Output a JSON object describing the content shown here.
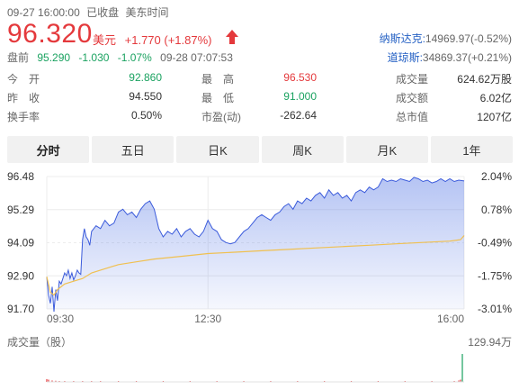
{
  "header": {
    "datetime": "09-27 16:00:00",
    "status": "已收盘",
    "timezone": "美东时间",
    "price": "96.320",
    "currency": "美元",
    "change": "+1.770",
    "change_pct": "(+1.87%)",
    "arrow_icon": "up-arrow-icon",
    "premarket_label": "盘前",
    "premarket_price": "95.290",
    "premarket_change": "-1.030",
    "premarket_pct": "-1.07%",
    "premarket_time": "09-28 07:07:53"
  },
  "indices": [
    {
      "name": "纳斯达克:",
      "value": "14969.97(-0.52%)"
    },
    {
      "name": "道琼斯:",
      "value": "34869.37(+0.21%)"
    }
  ],
  "stats": [
    [
      {
        "label": "今　开",
        "value": "92.860",
        "color": "green"
      },
      {
        "label": "最　高",
        "value": "96.530",
        "color": "red"
      },
      {
        "label": "成交量",
        "value": "624.62万股",
        "color": "dark"
      }
    ],
    [
      {
        "label": "昨　收",
        "value": "94.550",
        "color": "dark"
      },
      {
        "label": "最　低",
        "value": "91.000",
        "color": "green"
      },
      {
        "label": "成交额",
        "value": "6.02亿",
        "color": "dark"
      }
    ],
    [
      {
        "label": "换手率",
        "value": "0.50%",
        "color": "dark"
      },
      {
        "label": "市盈(动)",
        "value": "-262.64",
        "color": "dark"
      },
      {
        "label": "总市值",
        "value": "1207亿",
        "color": "dark"
      }
    ]
  ],
  "tabs": [
    "分时",
    "五日",
    "日K",
    "周K",
    "月K",
    "1年"
  ],
  "active_tab": 0,
  "chart_data": {
    "type": "line",
    "series": [],
    "y_ticks": [
      "96.48",
      "95.29",
      "94.09",
      "92.90",
      "91.70"
    ],
    "y_pct_ticks": [
      "2.04%",
      "0.78%",
      "-0.49%",
      "-1.75%",
      "-3.01%"
    ],
    "x_ticks": [
      "09:30",
      "12:30",
      "16:00"
    ],
    "ylim": [
      91.7,
      96.48
    ],
    "prev_close": 94.55,
    "price_line": [
      [
        0,
        92.86
      ],
      [
        2,
        92.2
      ],
      [
        4,
        91.9
      ],
      [
        6,
        92.5
      ],
      [
        8,
        91.6
      ],
      [
        10,
        92.4
      ],
      [
        12,
        92.0
      ],
      [
        14,
        92.7
      ],
      [
        16,
        92.6
      ],
      [
        18,
        92.8
      ],
      [
        20,
        93.0
      ],
      [
        22,
        92.9
      ],
      [
        24,
        93.1
      ],
      [
        26,
        92.8
      ],
      [
        28,
        93.0
      ],
      [
        30,
        92.75
      ],
      [
        32,
        92.9
      ],
      [
        34,
        93.1
      ],
      [
        36,
        93.0
      ],
      [
        38,
        92.95
      ],
      [
        40,
        94.2
      ],
      [
        42,
        94.6
      ],
      [
        44,
        94.3
      ],
      [
        46,
        94.2
      ],
      [
        48,
        94.0
      ],
      [
        50,
        94.5
      ],
      [
        55,
        94.7
      ],
      [
        60,
        94.6
      ],
      [
        65,
        94.9
      ],
      [
        70,
        94.7
      ],
      [
        75,
        94.8
      ],
      [
        80,
        95.2
      ],
      [
        85,
        95.3
      ],
      [
        90,
        95.1
      ],
      [
        95,
        95.2
      ],
      [
        100,
        95.0
      ],
      [
        105,
        95.3
      ],
      [
        110,
        95.5
      ],
      [
        115,
        95.6
      ],
      [
        120,
        95.3
      ],
      [
        125,
        94.6
      ],
      [
        130,
        94.3
      ],
      [
        135,
        94.5
      ],
      [
        140,
        94.4
      ],
      [
        145,
        94.6
      ],
      [
        150,
        94.3
      ],
      [
        155,
        94.5
      ],
      [
        160,
        94.6
      ],
      [
        165,
        94.4
      ],
      [
        170,
        94.3
      ],
      [
        175,
        94.5
      ],
      [
        180,
        94.9
      ],
      [
        185,
        94.6
      ],
      [
        190,
        94.5
      ],
      [
        195,
        94.2
      ],
      [
        200,
        94.1
      ],
      [
        205,
        94.05
      ],
      [
        210,
        94.1
      ],
      [
        215,
        94.3
      ],
      [
        220,
        94.5
      ],
      [
        225,
        94.6
      ],
      [
        230,
        94.8
      ],
      [
        235,
        95.0
      ],
      [
        240,
        95.1
      ],
      [
        245,
        95.0
      ],
      [
        250,
        94.9
      ],
      [
        255,
        95.1
      ],
      [
        260,
        95.2
      ],
      [
        265,
        95.4
      ],
      [
        270,
        95.5
      ],
      [
        275,
        95.3
      ],
      [
        280,
        95.6
      ],
      [
        285,
        95.5
      ],
      [
        290,
        95.7
      ],
      [
        295,
        95.6
      ],
      [
        300,
        95.8
      ],
      [
        305,
        95.9
      ],
      [
        310,
        95.7
      ],
      [
        315,
        96.0
      ],
      [
        320,
        95.8
      ],
      [
        325,
        95.9
      ],
      [
        330,
        95.7
      ],
      [
        335,
        95.8
      ],
      [
        340,
        95.6
      ],
      [
        345,
        95.9
      ],
      [
        350,
        96.0
      ],
      [
        355,
        95.9
      ],
      [
        360,
        96.1
      ],
      [
        365,
        96.0
      ],
      [
        370,
        96.1
      ],
      [
        375,
        96.4
      ],
      [
        380,
        96.3
      ],
      [
        385,
        96.35
      ],
      [
        390,
        96.3
      ],
      [
        395,
        96.4
      ],
      [
        400,
        96.35
      ],
      [
        405,
        96.3
      ],
      [
        410,
        96.45
      ],
      [
        415,
        96.4
      ],
      [
        420,
        96.3
      ],
      [
        425,
        96.35
      ],
      [
        430,
        96.25
      ],
      [
        435,
        96.3
      ],
      [
        440,
        96.4
      ],
      [
        445,
        96.3
      ],
      [
        450,
        96.4
      ],
      [
        455,
        96.3
      ],
      [
        460,
        96.35
      ],
      [
        466,
        96.32
      ]
    ],
    "avg_line": [
      [
        0,
        92.86
      ],
      [
        4,
        92.3
      ],
      [
        8,
        92.2
      ],
      [
        12,
        92.4
      ],
      [
        16,
        92.5
      ],
      [
        20,
        92.6
      ],
      [
        30,
        92.7
      ],
      [
        40,
        92.8
      ],
      [
        50,
        93.0
      ],
      [
        60,
        93.1
      ],
      [
        80,
        93.3
      ],
      [
        100,
        93.4
      ],
      [
        120,
        93.5
      ],
      [
        150,
        93.6
      ],
      [
        180,
        93.7
      ],
      [
        210,
        93.75
      ],
      [
        240,
        93.8
      ],
      [
        270,
        93.85
      ],
      [
        300,
        93.9
      ],
      [
        330,
        93.95
      ],
      [
        360,
        94.0
      ],
      [
        390,
        94.05
      ],
      [
        420,
        94.1
      ],
      [
        450,
        94.15
      ],
      [
        462,
        94.2
      ],
      [
        466,
        94.35
      ]
    ],
    "volume_label": "成交量（股）",
    "volume_max": "129.94万",
    "volume_bars": [
      [
        0,
        0.1
      ],
      [
        2,
        0.08
      ],
      [
        6,
        0.05
      ],
      [
        10,
        0.04
      ],
      [
        14,
        0.03
      ],
      [
        20,
        0.03
      ],
      [
        30,
        0.02
      ],
      [
        40,
        0.03
      ],
      [
        50,
        0.02
      ],
      [
        60,
        0.02
      ],
      [
        80,
        0.02
      ],
      [
        100,
        0.02
      ],
      [
        130,
        0.02
      ],
      [
        160,
        0.02
      ],
      [
        190,
        0.02
      ],
      [
        220,
        0.02
      ],
      [
        250,
        0.02
      ],
      [
        280,
        0.02
      ],
      [
        310,
        0.02
      ],
      [
        340,
        0.02
      ],
      [
        370,
        0.02
      ],
      [
        400,
        0.02
      ],
      [
        430,
        0.02
      ],
      [
        455,
        0.03
      ],
      [
        460,
        0.05
      ],
      [
        462,
        0.08
      ],
      [
        464,
        1.0
      ]
    ]
  },
  "colors": {
    "red": "#e4393c",
    "green": "#1aa260",
    "line": "#3b5bdb",
    "avg": "#f0c050"
  }
}
